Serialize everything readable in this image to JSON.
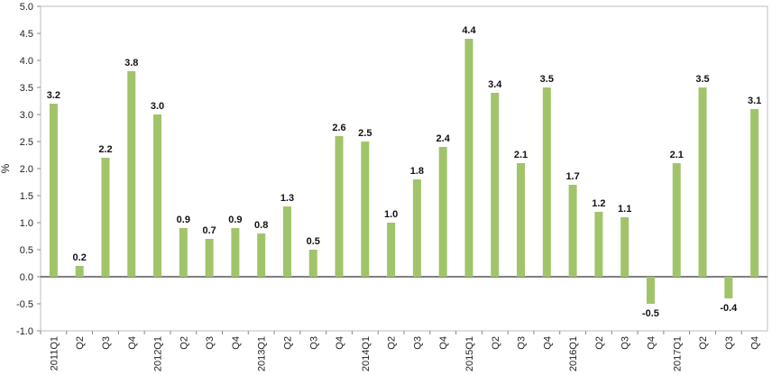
{
  "chart_data": {
    "type": "bar",
    "ylabel": "%",
    "xlabel": "",
    "ylim": [
      -1.0,
      5.0
    ],
    "yticks": [
      -1.0,
      -0.5,
      0.0,
      0.5,
      1.0,
      1.5,
      2.0,
      2.5,
      3.0,
      3.5,
      4.0,
      4.5,
      5.0
    ],
    "ytick_labels": [
      "-1.0",
      "-0.5",
      "0.0",
      "0.5",
      "1.0",
      "1.5",
      "2.0",
      "2.5",
      "3.0",
      "3.5",
      "4.0",
      "4.5",
      "5.0"
    ],
    "grid": false,
    "bar_color": "#a1c46a",
    "categories": [
      "2011Q1",
      "Q2",
      "Q3",
      "Q4",
      "2012Q1",
      "Q2",
      "Q3",
      "Q4",
      "2013Q1",
      "Q2",
      "Q3",
      "Q4",
      "2014Q1",
      "Q2",
      "Q3",
      "Q4",
      "2015Q1",
      "Q2",
      "Q3",
      "Q4",
      "2016Q1",
      "Q2",
      "Q3",
      "Q4",
      "2017Q1",
      "Q2",
      "Q3",
      "Q4"
    ],
    "values": [
      3.2,
      0.2,
      2.2,
      3.8,
      3.0,
      0.9,
      0.7,
      0.9,
      0.8,
      1.3,
      0.5,
      2.6,
      2.5,
      1.0,
      1.8,
      2.4,
      4.4,
      3.4,
      2.1,
      3.5,
      1.7,
      1.2,
      1.1,
      -0.5,
      2.1,
      3.5,
      -0.4,
      3.1
    ],
    "value_labels": [
      "3.2",
      "0.2",
      "2.2",
      "3.8",
      "3.0",
      "0.9",
      "0.7",
      "0.9",
      "0.8",
      "1.3",
      "0.5",
      "2.6",
      "2.5",
      "1.0",
      "1.8",
      "2.4",
      "4.4",
      "3.4",
      "2.1",
      "3.5",
      "1.7",
      "1.2",
      "1.1",
      "-0.5",
      "2.1",
      "3.5",
      "-0.4",
      "3.1"
    ]
  }
}
